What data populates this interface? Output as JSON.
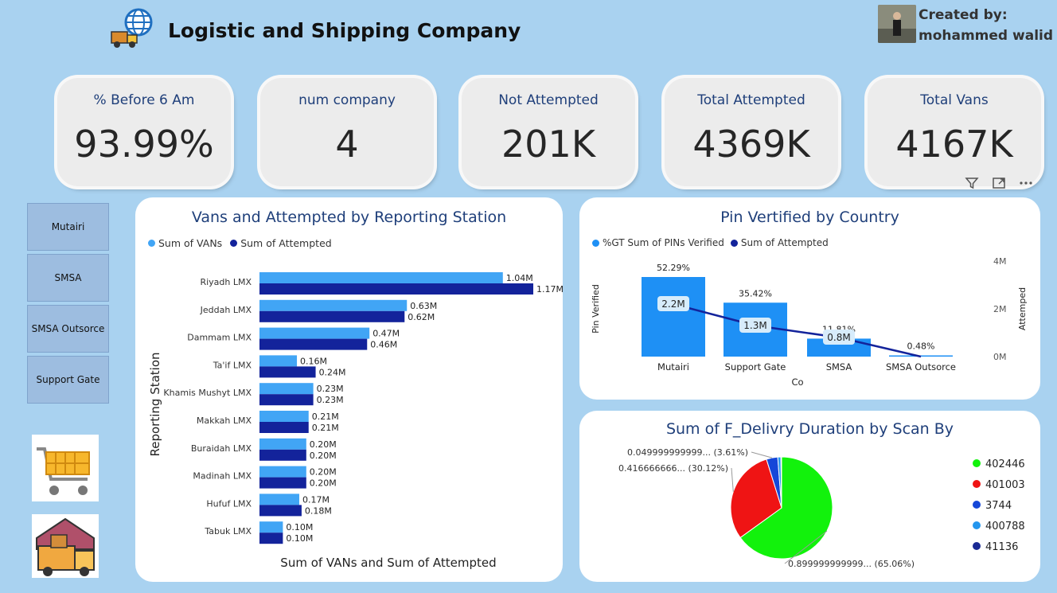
{
  "header": {
    "title": "Logistic and Shipping Company",
    "created_by_label": "Created by:",
    "created_by_name": "mohammed walid"
  },
  "kpis": [
    {
      "label": "% Before 6 Am",
      "value": "93.99%"
    },
    {
      "label": "num company",
      "value": "4"
    },
    {
      "label": "Not Attempted",
      "value": "201K"
    },
    {
      "label": "Total Attempted",
      "value": "4369K"
    },
    {
      "label": "Total Vans",
      "value": "4167K"
    }
  ],
  "slicers": [
    "Mutairi",
    "SMSA",
    "SMSA Outsorce",
    "Support Gate"
  ],
  "colors": {
    "vans": "#41a5f5",
    "attempted": "#13239b",
    "pin_bar": "#1e90f5",
    "page_bg": "#a9d2f0"
  },
  "toolbar": {
    "filter_icon": "filter-icon",
    "focus_icon": "focus-mode-icon",
    "more_icon": "more-options-icon"
  },
  "charts": {
    "bar": {
      "title": "Vans and Attempted by Reporting Station",
      "legend": [
        "Sum of VANs",
        "Sum of Attempted"
      ],
      "ylabel": "Reporting Station",
      "xlabel": "Sum of VANs and Sum of Attempted"
    },
    "pin": {
      "title": "Pin Vertified by Country",
      "legend": [
        "%GT Sum of PINs Verified",
        "Sum of Attempted"
      ],
      "ylabel_left": "Pin Verified",
      "ylabel_right": "Attemped",
      "xlabel": "Co",
      "right_ticks": [
        "4M",
        "2M",
        "0M"
      ]
    },
    "pie": {
      "title": "Sum of F_Delivry Duration by Scan By",
      "legend": [
        "402446",
        "401003",
        "3744",
        "400788",
        "41136"
      ]
    }
  },
  "chart_data": [
    {
      "type": "bar",
      "title": "Vans and Attempted by Reporting Station",
      "categories": [
        "Riyadh LMX",
        "Jeddah LMX",
        "Dammam LMX",
        "Ta'if LMX",
        "Khamis Mushyt LMX",
        "Makkah LMX",
        "Buraidah LMX",
        "Madinah LMX",
        "Hufuf LMX",
        "Tabuk LMX"
      ],
      "series": [
        {
          "name": "Sum of VANs",
          "values": [
            1.04,
            0.63,
            0.47,
            0.16,
            0.23,
            0.21,
            0.2,
            0.2,
            0.17,
            0.1
          ],
          "labels": [
            "1.04M",
            "0.63M",
            "0.47M",
            "0.16M",
            "0.23M",
            "0.21M",
            "0.20M",
            "0.20M",
            "0.17M",
            "0.10M"
          ]
        },
        {
          "name": "Sum of Attempted",
          "values": [
            1.17,
            0.62,
            0.46,
            0.24,
            0.23,
            0.21,
            0.2,
            0.2,
            0.18,
            0.1
          ],
          "labels": [
            "1.17M",
            "0.62M",
            "0.46M",
            "0.24M",
            "0.23M",
            "0.21M",
            "0.20M",
            "0.20M",
            "0.18M",
            "0.10M"
          ]
        }
      ],
      "xlabel": "Sum of VANs and Sum of Attempted",
      "ylabel": "Reporting Station",
      "xlim": [
        0,
        1.17
      ]
    },
    {
      "type": "bar",
      "title": "Pin Vertified by Country",
      "categories": [
        "Mutairi",
        "Support Gate",
        "SMSA",
        "SMSA Outsorce"
      ],
      "series": [
        {
          "name": "%GT Sum of PINs Verified",
          "values": [
            52.29,
            35.42,
            11.81,
            0.48
          ],
          "labels": [
            "52.29%",
            "35.42%",
            "11.81%",
            "0.48%"
          ]
        },
        {
          "name": "Sum of Attempted",
          "values": [
            2.2,
            1.3,
            0.8,
            0.0
          ],
          "labels": [
            "2.2M",
            "1.3M",
            "0.8M",
            ""
          ]
        }
      ],
      "ylim_right": [
        0,
        4
      ],
      "xlabel": "Co"
    },
    {
      "type": "pie",
      "title": "Sum of F_Delivry Duration by Scan By",
      "categories": [
        "402446",
        "401003",
        "3744",
        "400788",
        "41136"
      ],
      "values": [
        65.06,
        30.12,
        3.61,
        1.0,
        0.21
      ],
      "colors": [
        "#12f20c",
        "#ef1414",
        "#1547d8",
        "#2496ee",
        "#1a2a94"
      ],
      "labels": [
        {
          "text": "0.899999999999... (65.06%)",
          "slice": 0
        },
        {
          "text": "0.416666666... (30.12%)",
          "slice": 1
        },
        {
          "text": "0.049999999999... (3.61%)",
          "slice": 2
        }
      ]
    }
  ]
}
